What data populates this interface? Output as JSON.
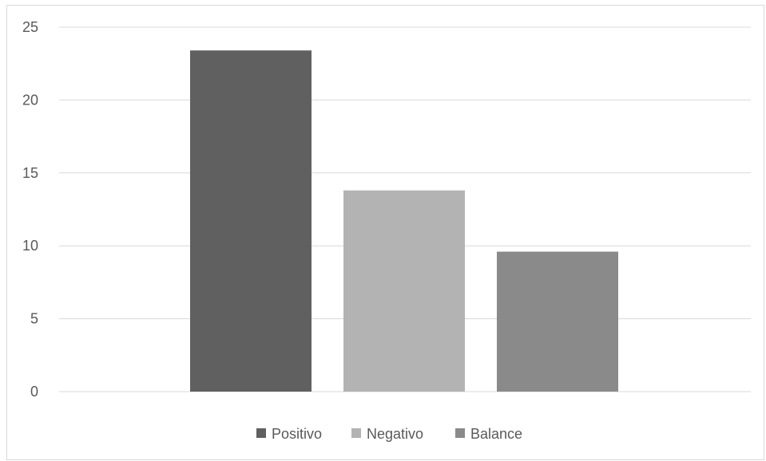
{
  "chart_data": {
    "type": "bar",
    "title": "",
    "xlabel": "",
    "ylabel": "",
    "ylim": [
      0,
      25
    ],
    "yticks": [
      0,
      5,
      10,
      15,
      20,
      25
    ],
    "grid": true,
    "legend_position": "bottom",
    "series": [
      {
        "name": "Positivo",
        "value": 23.4,
        "color": "#606060"
      },
      {
        "name": "Negativo",
        "value": 13.8,
        "color": "#b3b3b3"
      },
      {
        "name": "Balance",
        "value": 9.6,
        "color": "#8a8a8a"
      }
    ]
  }
}
